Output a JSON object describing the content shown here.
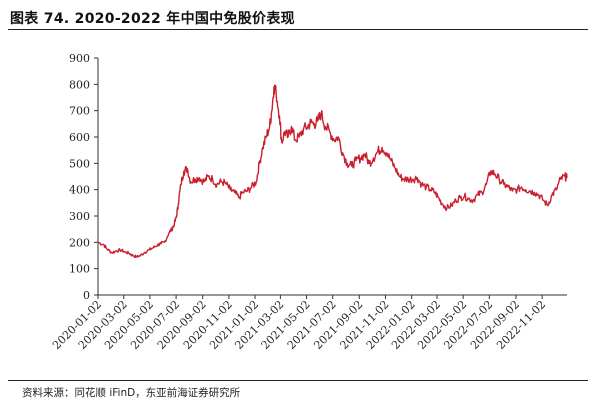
{
  "header": {
    "title": "图表 74. 2020-2022 年中国中免股价表现"
  },
  "footer": {
    "source": "资料来源：同花顺 iFinD，东亚前海证券研究所"
  },
  "chart_data": {
    "type": "line",
    "title": "图表 74. 2020-2022 年中国中免股价表现",
    "xlabel": "",
    "ylabel": "",
    "ylim": [
      0,
      900
    ],
    "yticks": [
      0,
      100,
      200,
      300,
      400,
      500,
      600,
      700,
      800,
      900
    ],
    "xlim": [
      "2020-01-02",
      "2022-12-30"
    ],
    "x_tick_labels": [
      "2020-01-02",
      "2020-03-02",
      "2020-05-02",
      "2020-07-02",
      "2020-09-02",
      "2020-11-02",
      "2021-01-02",
      "2021-03-02",
      "2021-05-02",
      "2021-07-02",
      "2021-09-02",
      "2021-11-02",
      "2022-01-02",
      "2022-03-02",
      "2022-05-02",
      "2022-07-02",
      "2022-09-02",
      "2022-11-02"
    ],
    "grid": false,
    "legend": "none",
    "series_color": "#c8202f",
    "x": [
      "2020-01-02",
      "2020-01-15",
      "2020-01-23",
      "2020-02-04",
      "2020-02-14",
      "2020-02-25",
      "2020-03-05",
      "2020-03-15",
      "2020-03-23",
      "2020-04-01",
      "2020-04-10",
      "2020-04-20",
      "2020-05-01",
      "2020-05-10",
      "2020-05-20",
      "2020-05-28",
      "2020-06-05",
      "2020-06-15",
      "2020-06-22",
      "2020-06-28",
      "2020-07-03",
      "2020-07-07",
      "2020-07-13",
      "2020-07-20",
      "2020-07-28",
      "2020-08-05",
      "2020-08-15",
      "2020-08-25",
      "2020-09-05",
      "2020-09-15",
      "2020-09-25",
      "2020-10-05",
      "2020-10-15",
      "2020-10-25",
      "2020-11-05",
      "2020-11-15",
      "2020-11-25",
      "2020-12-05",
      "2020-12-15",
      "2020-12-25",
      "2021-01-05",
      "2021-01-12",
      "2021-01-20",
      "2021-01-28",
      "2021-02-05",
      "2021-02-10",
      "2021-02-15",
      "2021-02-20",
      "2021-02-28",
      "2021-03-05",
      "2021-03-12",
      "2021-03-20",
      "2021-03-28",
      "2021-04-05",
      "2021-04-15",
      "2021-04-25",
      "2021-05-05",
      "2021-05-12",
      "2021-05-20",
      "2021-05-28",
      "2021-06-05",
      "2021-06-15",
      "2021-06-25",
      "2021-07-05",
      "2021-07-15",
      "2021-07-25",
      "2021-08-05",
      "2021-08-15",
      "2021-08-25",
      "2021-09-05",
      "2021-09-15",
      "2021-09-25",
      "2021-10-05",
      "2021-10-15",
      "2021-10-25",
      "2021-11-05",
      "2021-11-15",
      "2021-11-25",
      "2021-12-05",
      "2021-12-15",
      "2021-12-25",
      "2022-01-05",
      "2022-01-15",
      "2022-01-25",
      "2022-02-05",
      "2022-02-15",
      "2022-02-25",
      "2022-03-05",
      "2022-03-15",
      "2022-03-25",
      "2022-04-05",
      "2022-04-15",
      "2022-04-25",
      "2022-05-05",
      "2022-05-15",
      "2022-05-25",
      "2022-06-05",
      "2022-06-15",
      "2022-06-25",
      "2022-07-05",
      "2022-07-15",
      "2022-07-25",
      "2022-08-05",
      "2022-08-15",
      "2022-08-25",
      "2022-09-05",
      "2022-09-15",
      "2022-09-25",
      "2022-10-05",
      "2022-10-15",
      "2022-10-25",
      "2022-11-05",
      "2022-11-15",
      "2022-11-25",
      "2022-12-05",
      "2022-12-15",
      "2022-12-25",
      "2022-12-30"
    ],
    "series": [
      {
        "name": "",
        "values": [
          200,
          192,
          175,
          160,
          168,
          170,
          163,
          158,
          150,
          145,
          150,
          162,
          172,
          180,
          190,
          195,
          200,
          235,
          250,
          270,
          300,
          345,
          420,
          470,
          480,
          430,
          440,
          445,
          430,
          450,
          440,
          420,
          430,
          425,
          400,
          390,
          370,
          390,
          395,
          410,
          430,
          500,
          560,
          600,
          640,
          700,
          790,
          770,
          680,
          580,
          620,
          600,
          640,
          590,
          600,
          630,
          640,
          655,
          650,
          660,
          690,
          640,
          620,
          590,
          600,
          540,
          500,
          490,
          510,
          520,
          535,
          500,
          520,
          545,
          560,
          540,
          510,
          480,
          450,
          440,
          440,
          440,
          445,
          420,
          410,
          400,
          390,
          370,
          345,
          330,
          340,
          360,
          370,
          375,
          365,
          360,
          380,
          390,
          420,
          470,
          460,
          440,
          420,
          410,
          395,
          400,
          410,
          400,
          395,
          390,
          380,
          360,
          340,
          380,
          400,
          440,
          450,
          445
        ]
      }
    ]
  }
}
